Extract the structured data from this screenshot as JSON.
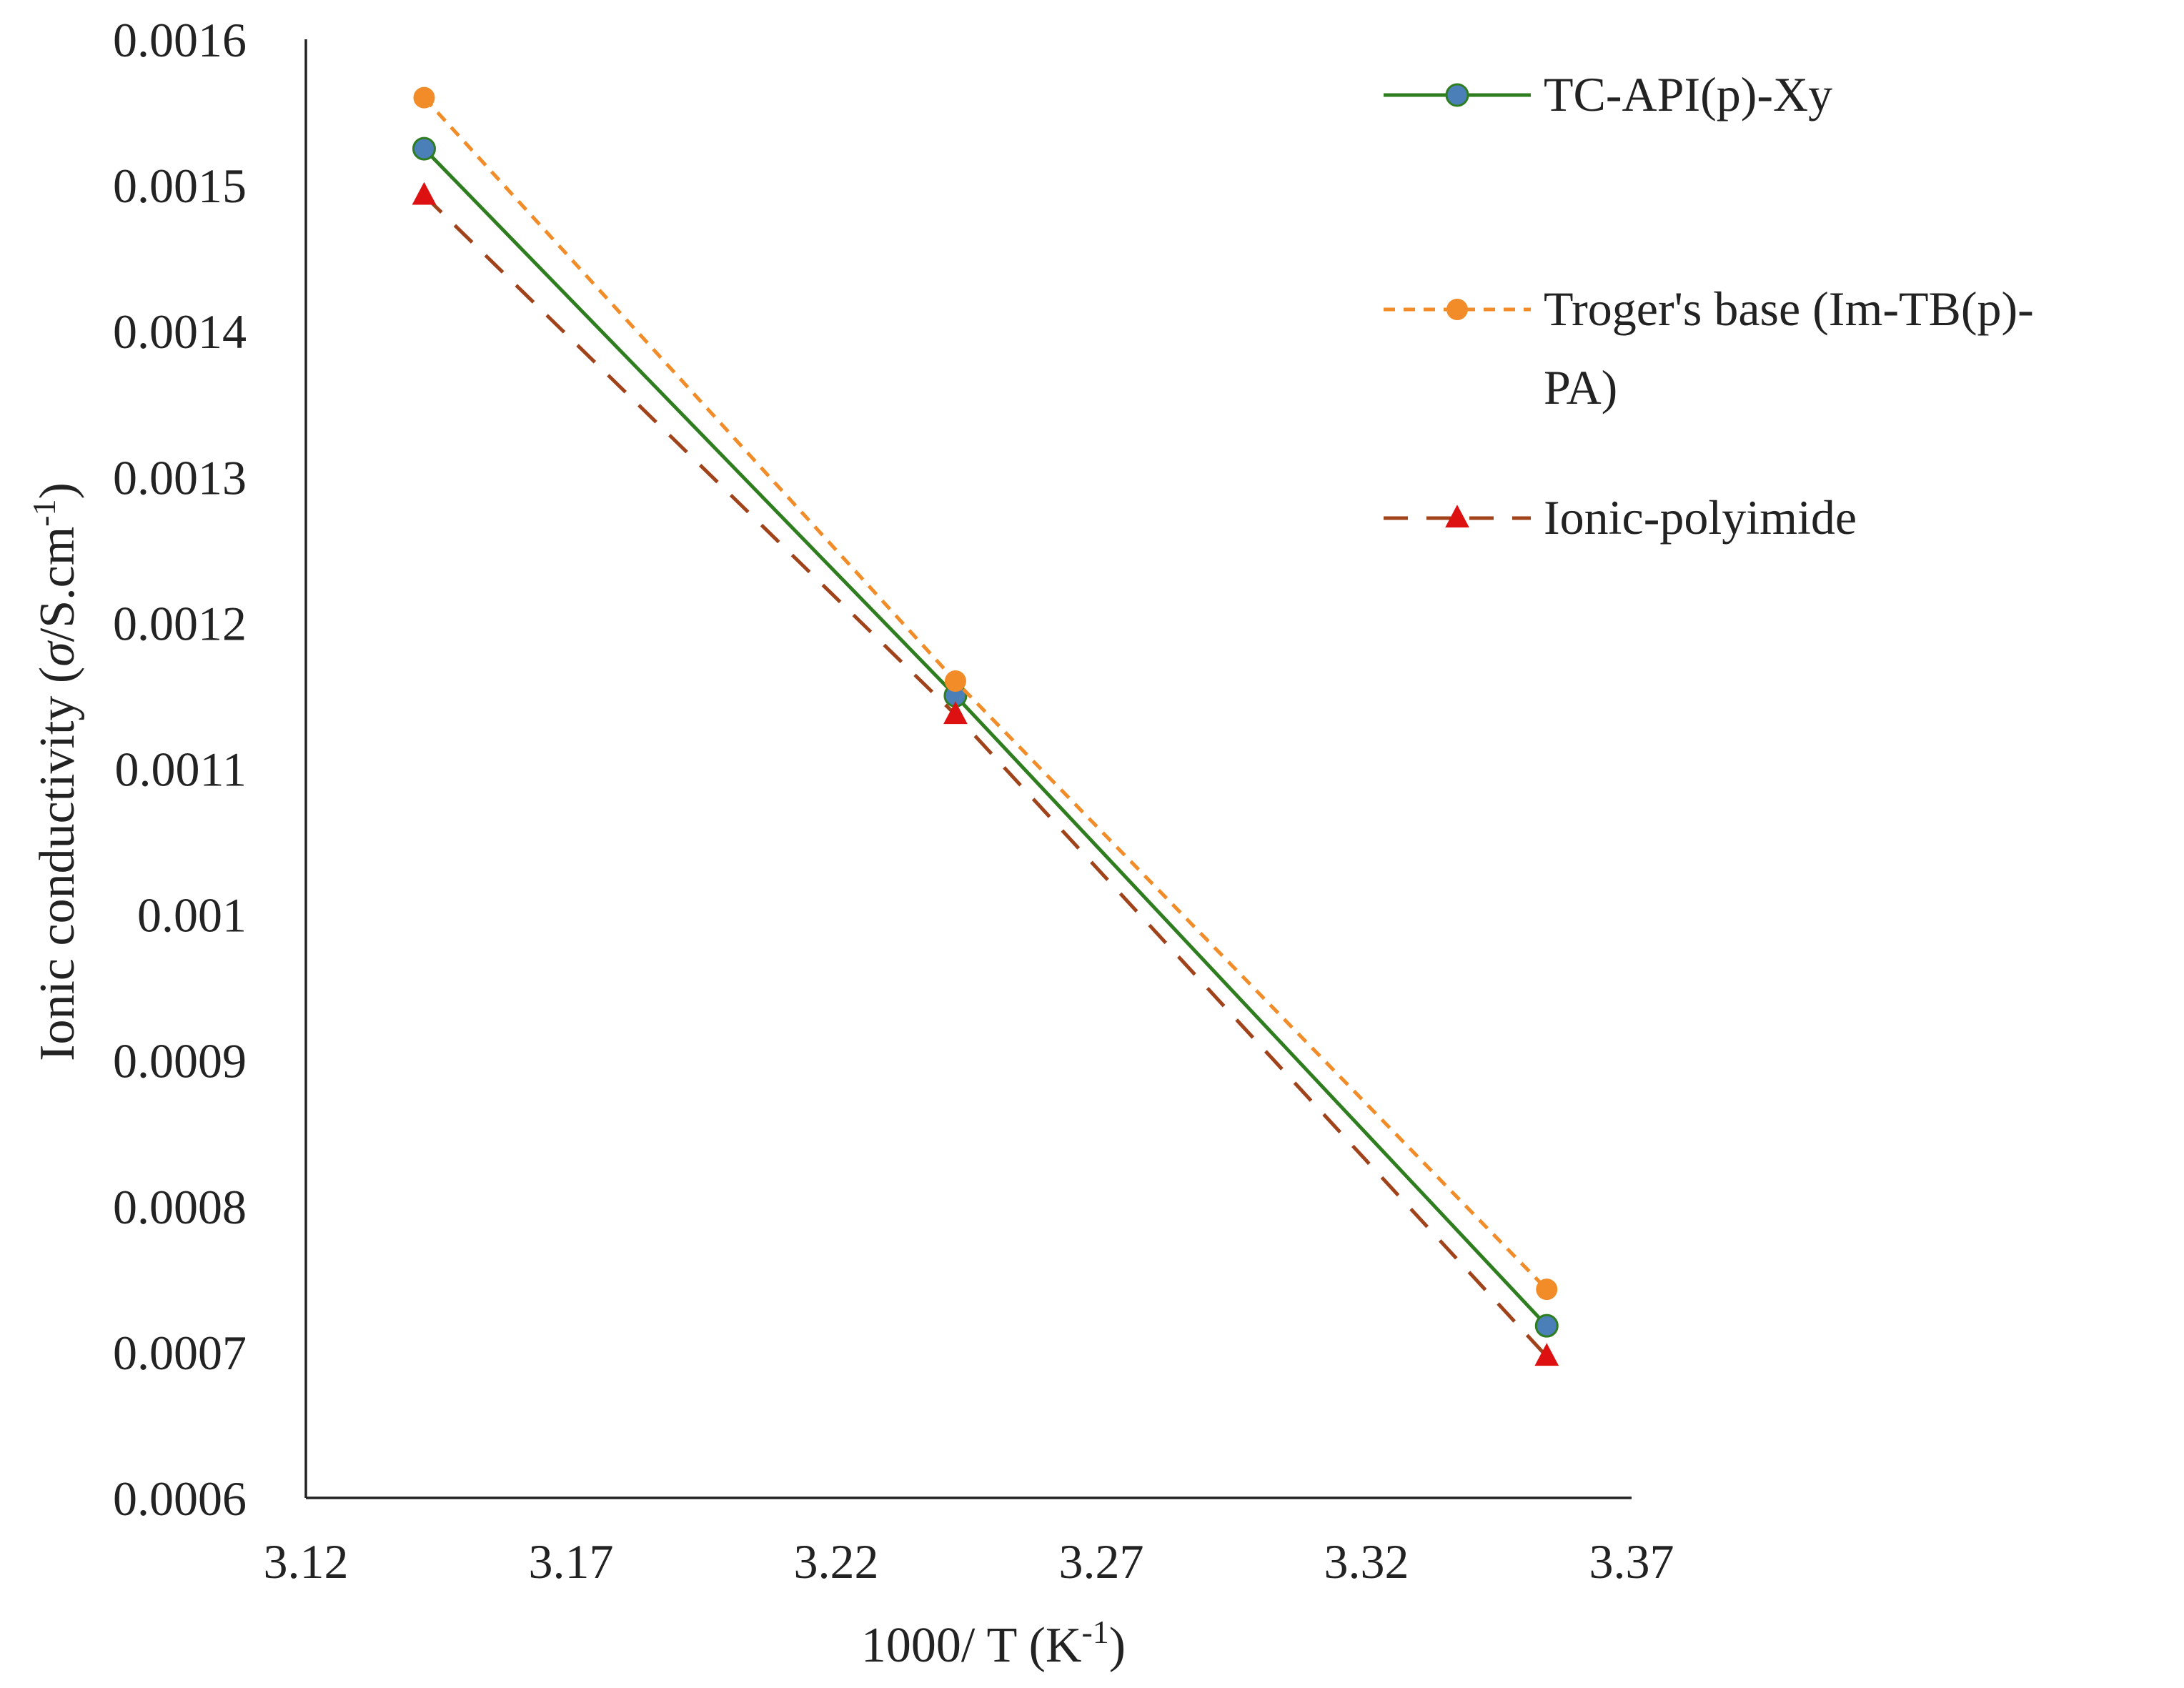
{
  "chart_data": {
    "type": "line",
    "xlabel": {
      "main": "1000/ T (K",
      "sup": "-1",
      "close": ")"
    },
    "ylabel": {
      "main": "Ionic conductivity (",
      "sigma": "σ",
      "unit": "/S.cm",
      "sup": "-1",
      "close": ")"
    },
    "xlim": [
      3.12,
      3.37
    ],
    "ylim": [
      0.0006,
      0.0016
    ],
    "x_ticks": [
      "3.12",
      "3.17",
      "3.22",
      "3.27",
      "3.32",
      "3.37"
    ],
    "y_ticks": [
      "0.0006",
      "0.0007",
      "0.0008",
      "0.0009",
      "0.001",
      "0.0011",
      "0.0012",
      "0.0013",
      "0.0014",
      "0.0015",
      "0.0016"
    ],
    "grid": false,
    "legend_position": "top-right",
    "series": [
      {
        "name": "TC-API(p)-Xy",
        "legend_lines": [
          "TC-API(p)-Xy"
        ],
        "x": [
          3.1423,
          3.2425,
          3.354
        ],
        "y": [
          0.001525,
          0.00115,
          0.000718
        ],
        "color": "#2e7d1f",
        "marker_color": "#4a7fb8",
        "marker": "circle",
        "dash": "solid"
      },
      {
        "name": "Troger's base (Im-TB(p)-PA)",
        "legend_lines": [
          "Troger's base (Im-TB(p)-",
          "PA)"
        ],
        "x": [
          3.1423,
          3.2425,
          3.354
        ],
        "y": [
          0.00156,
          0.00116,
          0.000743
        ],
        "color": "#f28c28",
        "marker_color": "#f28c28",
        "marker": "circle",
        "dash": "short"
      },
      {
        "name": "Ionic-polyimide",
        "legend_lines": [
          "Ionic-polyimide"
        ],
        "x": [
          3.1423,
          3.2425,
          3.354
        ],
        "y": [
          0.001493,
          0.001137,
          0.000697
        ],
        "color": "#a0421a",
        "marker_color": "#dd1111",
        "marker": "triangle",
        "dash": "long"
      }
    ]
  }
}
